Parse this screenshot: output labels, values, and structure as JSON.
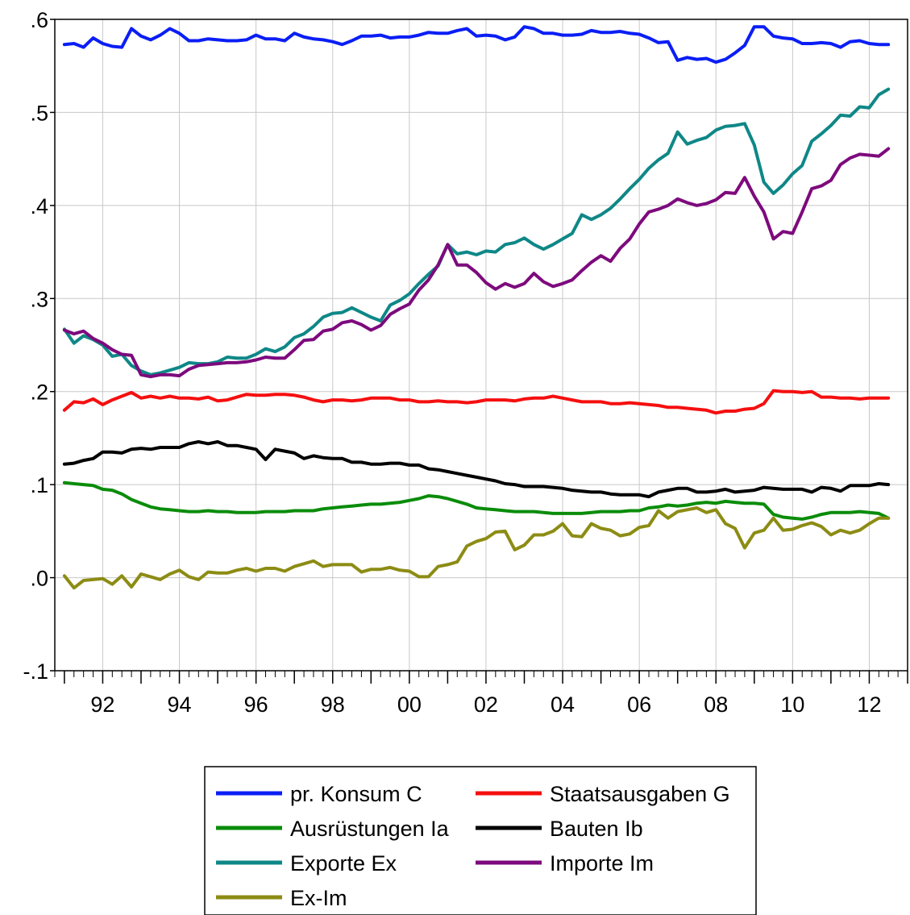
{
  "chart_data": {
    "type": "line",
    "title": "",
    "xlabel": "",
    "ylabel": "",
    "x_start": "1991Q1",
    "x_end": "2012Q4",
    "frequency": "quarterly",
    "ylim": [
      -0.1,
      0.6
    ],
    "y_ticks": [
      -0.1,
      0.0,
      0.1,
      0.2,
      0.3,
      0.4,
      0.5,
      0.6
    ],
    "y_tick_labels": [
      "-.1",
      ".0",
      ".1",
      ".2",
      ".3",
      ".4",
      ".5",
      ".6"
    ],
    "x_tick_labels": [
      "92",
      "94",
      "96",
      "98",
      "00",
      "02",
      "04",
      "06",
      "08",
      "10",
      "12"
    ],
    "grid": true,
    "legend_position": "bottom-center",
    "series": [
      {
        "name": "pr. Konsum C",
        "color": "#0a1ef5",
        "values": [
          0.573,
          0.574,
          0.57,
          0.58,
          0.574,
          0.571,
          0.57,
          0.59,
          0.582,
          0.578,
          0.583,
          0.59,
          0.585,
          0.577,
          0.577,
          0.579,
          0.578,
          0.577,
          0.577,
          0.578,
          0.583,
          0.579,
          0.579,
          0.577,
          0.585,
          0.581,
          0.579,
          0.578,
          0.576,
          0.573,
          0.577,
          0.582,
          0.582,
          0.583,
          0.58,
          0.581,
          0.581,
          0.583,
          0.586,
          0.585,
          0.585,
          0.588,
          0.59,
          0.582,
          0.583,
          0.582,
          0.578,
          0.581,
          0.592,
          0.59,
          0.585,
          0.585,
          0.583,
          0.583,
          0.584,
          0.588,
          0.586,
          0.586,
          0.587,
          0.585,
          0.584,
          0.58,
          0.575,
          0.576,
          0.556,
          0.559,
          0.557,
          0.558,
          0.554,
          0.557,
          0.564,
          0.572,
          0.592,
          0.592,
          0.582,
          0.58,
          0.579,
          0.574,
          0.574,
          0.575,
          0.574,
          0.57,
          0.576,
          0.577,
          0.574,
          0.573,
          0.573
        ]
      },
      {
        "name": "Staatsausgaben G",
        "color": "#f50f0f",
        "values": [
          0.18,
          0.189,
          0.188,
          0.192,
          0.186,
          0.191,
          0.195,
          0.199,
          0.193,
          0.195,
          0.193,
          0.195,
          0.193,
          0.193,
          0.192,
          0.194,
          0.19,
          0.191,
          0.194,
          0.197,
          0.196,
          0.196,
          0.197,
          0.197,
          0.196,
          0.194,
          0.191,
          0.189,
          0.191,
          0.191,
          0.19,
          0.191,
          0.193,
          0.193,
          0.193,
          0.191,
          0.191,
          0.189,
          0.189,
          0.19,
          0.189,
          0.189,
          0.188,
          0.189,
          0.191,
          0.191,
          0.191,
          0.19,
          0.192,
          0.193,
          0.193,
          0.195,
          0.193,
          0.191,
          0.189,
          0.189,
          0.189,
          0.187,
          0.187,
          0.188,
          0.187,
          0.186,
          0.185,
          0.183,
          0.183,
          0.182,
          0.181,
          0.18,
          0.177,
          0.179,
          0.179,
          0.181,
          0.182,
          0.187,
          0.201,
          0.2,
          0.2,
          0.199,
          0.2,
          0.194,
          0.194,
          0.193,
          0.193,
          0.192,
          0.193,
          0.193,
          0.193
        ]
      },
      {
        "name": "Ausrüstungen Ia",
        "color": "#0a8c0a",
        "values": [
          0.102,
          0.101,
          0.1,
          0.099,
          0.095,
          0.094,
          0.09,
          0.084,
          0.08,
          0.076,
          0.074,
          0.073,
          0.072,
          0.071,
          0.071,
          0.072,
          0.071,
          0.071,
          0.07,
          0.07,
          0.07,
          0.071,
          0.071,
          0.071,
          0.072,
          0.072,
          0.072,
          0.074,
          0.075,
          0.076,
          0.077,
          0.078,
          0.079,
          0.079,
          0.08,
          0.081,
          0.083,
          0.085,
          0.088,
          0.087,
          0.085,
          0.082,
          0.079,
          0.075,
          0.074,
          0.073,
          0.072,
          0.071,
          0.071,
          0.071,
          0.07,
          0.069,
          0.069,
          0.069,
          0.069,
          0.07,
          0.071,
          0.071,
          0.071,
          0.072,
          0.072,
          0.075,
          0.076,
          0.078,
          0.077,
          0.078,
          0.08,
          0.081,
          0.08,
          0.082,
          0.081,
          0.08,
          0.08,
          0.079,
          0.068,
          0.065,
          0.064,
          0.063,
          0.065,
          0.068,
          0.07,
          0.07,
          0.07,
          0.071,
          0.07,
          0.069,
          0.064
        ]
      },
      {
        "name": "Bauten Ib",
        "color": "#000000",
        "values": [
          0.122,
          0.123,
          0.126,
          0.128,
          0.135,
          0.135,
          0.134,
          0.138,
          0.139,
          0.138,
          0.14,
          0.14,
          0.14,
          0.144,
          0.146,
          0.144,
          0.146,
          0.142,
          0.142,
          0.14,
          0.138,
          0.127,
          0.138,
          0.136,
          0.134,
          0.128,
          0.131,
          0.129,
          0.128,
          0.128,
          0.124,
          0.124,
          0.122,
          0.122,
          0.123,
          0.123,
          0.121,
          0.121,
          0.117,
          0.116,
          0.114,
          0.112,
          0.11,
          0.108,
          0.106,
          0.104,
          0.101,
          0.1,
          0.098,
          0.098,
          0.098,
          0.097,
          0.096,
          0.094,
          0.093,
          0.092,
          0.092,
          0.09,
          0.089,
          0.089,
          0.089,
          0.087,
          0.092,
          0.094,
          0.096,
          0.096,
          0.092,
          0.092,
          0.093,
          0.095,
          0.092,
          0.093,
          0.094,
          0.097,
          0.096,
          0.095,
          0.095,
          0.095,
          0.092,
          0.097,
          0.096,
          0.093,
          0.099,
          0.099,
          0.099,
          0.101,
          0.1
        ]
      },
      {
        "name": "Exporte Ex",
        "color": "#0f8787",
        "values": [
          0.267,
          0.252,
          0.26,
          0.256,
          0.25,
          0.238,
          0.24,
          0.228,
          0.222,
          0.218,
          0.22,
          0.223,
          0.226,
          0.231,
          0.23,
          0.23,
          0.232,
          0.237,
          0.236,
          0.236,
          0.24,
          0.246,
          0.243,
          0.248,
          0.258,
          0.262,
          0.27,
          0.28,
          0.284,
          0.285,
          0.29,
          0.285,
          0.28,
          0.276,
          0.293,
          0.298,
          0.305,
          0.316,
          0.326,
          0.335,
          0.358,
          0.348,
          0.35,
          0.347,
          0.351,
          0.35,
          0.358,
          0.36,
          0.365,
          0.358,
          0.353,
          0.358,
          0.364,
          0.37,
          0.39,
          0.385,
          0.39,
          0.397,
          0.407,
          0.418,
          0.428,
          0.44,
          0.449,
          0.456,
          0.479,
          0.466,
          0.47,
          0.473,
          0.481,
          0.485,
          0.486,
          0.488,
          0.465,
          0.425,
          0.413,
          0.422,
          0.434,
          0.443,
          0.469,
          0.477,
          0.486,
          0.497,
          0.496,
          0.506,
          0.505,
          0.519,
          0.525
        ]
      },
      {
        "name": "Importe Im",
        "color": "#7d0a7d",
        "values": [
          0.266,
          0.262,
          0.265,
          0.257,
          0.252,
          0.245,
          0.24,
          0.239,
          0.218,
          0.216,
          0.218,
          0.218,
          0.217,
          0.224,
          0.228,
          0.229,
          0.23,
          0.231,
          0.231,
          0.232,
          0.234,
          0.237,
          0.236,
          0.236,
          0.245,
          0.255,
          0.256,
          0.265,
          0.267,
          0.274,
          0.276,
          0.272,
          0.266,
          0.271,
          0.283,
          0.289,
          0.294,
          0.309,
          0.32,
          0.336,
          0.358,
          0.336,
          0.336,
          0.328,
          0.317,
          0.31,
          0.316,
          0.312,
          0.316,
          0.327,
          0.318,
          0.313,
          0.316,
          0.32,
          0.33,
          0.339,
          0.346,
          0.34,
          0.354,
          0.364,
          0.38,
          0.393,
          0.396,
          0.4,
          0.407,
          0.403,
          0.4,
          0.402,
          0.406,
          0.414,
          0.413,
          0.43,
          0.41,
          0.393,
          0.364,
          0.372,
          0.37,
          0.393,
          0.418,
          0.421,
          0.427,
          0.444,
          0.451,
          0.455,
          0.454,
          0.453,
          0.461
        ]
      },
      {
        "name": "Ex-Im",
        "color": "#8c8c14",
        "values": [
          0.002,
          -0.011,
          -0.003,
          -0.002,
          -0.001,
          -0.007,
          0.002,
          -0.01,
          0.004,
          0.001,
          -0.002,
          0.004,
          0.008,
          0.001,
          -0.002,
          0.006,
          0.005,
          0.005,
          0.008,
          0.01,
          0.007,
          0.01,
          0.01,
          0.007,
          0.012,
          0.015,
          0.018,
          0.012,
          0.014,
          0.014,
          0.014,
          0.006,
          0.009,
          0.009,
          0.011,
          0.008,
          0.007,
          0.001,
          0.001,
          0.012,
          0.014,
          0.017,
          0.034,
          0.039,
          0.042,
          0.049,
          0.05,
          0.03,
          0.035,
          0.046,
          0.046,
          0.05,
          0.058,
          0.045,
          0.044,
          0.058,
          0.053,
          0.051,
          0.045,
          0.047,
          0.054,
          0.056,
          0.072,
          0.064,
          0.071,
          0.073,
          0.075,
          0.07,
          0.073,
          0.058,
          0.053,
          0.032,
          0.048,
          0.051,
          0.064,
          0.051,
          0.052,
          0.056,
          0.059,
          0.055,
          0.046,
          0.051,
          0.048,
          0.051,
          0.058,
          0.064,
          0.064
        ]
      }
    ]
  }
}
